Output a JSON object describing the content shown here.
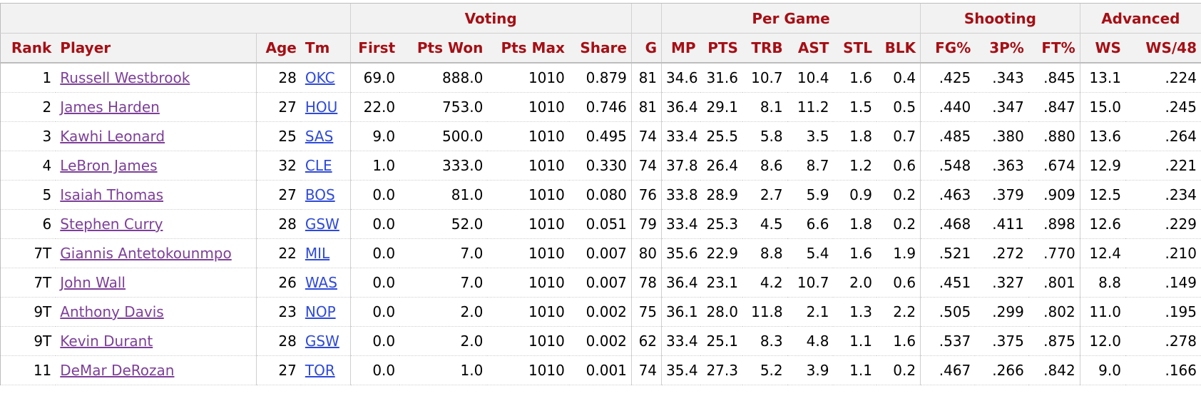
{
  "over_header": {
    "voting": "Voting",
    "per_game": "Per Game",
    "shooting": "Shooting",
    "advanced": "Advanced"
  },
  "columns": {
    "rank": "Rank",
    "player": "Player",
    "age": "Age",
    "tm": "Tm",
    "first": "First",
    "pts_won": "Pts Won",
    "pts_max": "Pts Max",
    "share": "Share",
    "g": "G",
    "mp": "MP",
    "pts": "PTS",
    "trb": "TRB",
    "ast": "AST",
    "stl": "STL",
    "blk": "BLK",
    "fg_pct": "FG%",
    "three_pct": "3P%",
    "ft_pct": "FT%",
    "ws": "WS",
    "ws48": "WS/48"
  },
  "rows": [
    {
      "rank": "1",
      "player": "Russell Westbrook",
      "age": "28",
      "tm": "OKC",
      "first": "69.0",
      "pts_won": "888.0",
      "pts_max": "1010",
      "share": "0.879",
      "g": "81",
      "mp": "34.6",
      "pts": "31.6",
      "trb": "10.7",
      "ast": "10.4",
      "stl": "1.6",
      "blk": "0.4",
      "fg_pct": ".425",
      "three_pct": ".343",
      "ft_pct": ".845",
      "ws": "13.1",
      "ws48": ".224"
    },
    {
      "rank": "2",
      "player": "James Harden",
      "age": "27",
      "tm": "HOU",
      "first": "22.0",
      "pts_won": "753.0",
      "pts_max": "1010",
      "share": "0.746",
      "g": "81",
      "mp": "36.4",
      "pts": "29.1",
      "trb": "8.1",
      "ast": "11.2",
      "stl": "1.5",
      "blk": "0.5",
      "fg_pct": ".440",
      "three_pct": ".347",
      "ft_pct": ".847",
      "ws": "15.0",
      "ws48": ".245"
    },
    {
      "rank": "3",
      "player": "Kawhi Leonard",
      "age": "25",
      "tm": "SAS",
      "first": "9.0",
      "pts_won": "500.0",
      "pts_max": "1010",
      "share": "0.495",
      "g": "74",
      "mp": "33.4",
      "pts": "25.5",
      "trb": "5.8",
      "ast": "3.5",
      "stl": "1.8",
      "blk": "0.7",
      "fg_pct": ".485",
      "three_pct": ".380",
      "ft_pct": ".880",
      "ws": "13.6",
      "ws48": ".264"
    },
    {
      "rank": "4",
      "player": "LeBron James",
      "age": "32",
      "tm": "CLE",
      "first": "1.0",
      "pts_won": "333.0",
      "pts_max": "1010",
      "share": "0.330",
      "g": "74",
      "mp": "37.8",
      "pts": "26.4",
      "trb": "8.6",
      "ast": "8.7",
      "stl": "1.2",
      "blk": "0.6",
      "fg_pct": ".548",
      "three_pct": ".363",
      "ft_pct": ".674",
      "ws": "12.9",
      "ws48": ".221"
    },
    {
      "rank": "5",
      "player": "Isaiah Thomas",
      "age": "27",
      "tm": "BOS",
      "first": "0.0",
      "pts_won": "81.0",
      "pts_max": "1010",
      "share": "0.080",
      "g": "76",
      "mp": "33.8",
      "pts": "28.9",
      "trb": "2.7",
      "ast": "5.9",
      "stl": "0.9",
      "blk": "0.2",
      "fg_pct": ".463",
      "three_pct": ".379",
      "ft_pct": ".909",
      "ws": "12.5",
      "ws48": ".234"
    },
    {
      "rank": "6",
      "player": "Stephen Curry",
      "age": "28",
      "tm": "GSW",
      "first": "0.0",
      "pts_won": "52.0",
      "pts_max": "1010",
      "share": "0.051",
      "g": "79",
      "mp": "33.4",
      "pts": "25.3",
      "trb": "4.5",
      "ast": "6.6",
      "stl": "1.8",
      "blk": "0.2",
      "fg_pct": ".468",
      "three_pct": ".411",
      "ft_pct": ".898",
      "ws": "12.6",
      "ws48": ".229"
    },
    {
      "rank": "7T",
      "player": "Giannis Antetokounmpo",
      "age": "22",
      "tm": "MIL",
      "first": "0.0",
      "pts_won": "7.0",
      "pts_max": "1010",
      "share": "0.007",
      "g": "80",
      "mp": "35.6",
      "pts": "22.9",
      "trb": "8.8",
      "ast": "5.4",
      "stl": "1.6",
      "blk": "1.9",
      "fg_pct": ".521",
      "three_pct": ".272",
      "ft_pct": ".770",
      "ws": "12.4",
      "ws48": ".210"
    },
    {
      "rank": "7T",
      "player": "John Wall",
      "age": "26",
      "tm": "WAS",
      "first": "0.0",
      "pts_won": "7.0",
      "pts_max": "1010",
      "share": "0.007",
      "g": "78",
      "mp": "36.4",
      "pts": "23.1",
      "trb": "4.2",
      "ast": "10.7",
      "stl": "2.0",
      "blk": "0.6",
      "fg_pct": ".451",
      "three_pct": ".327",
      "ft_pct": ".801",
      "ws": "8.8",
      "ws48": ".149"
    },
    {
      "rank": "9T",
      "player": "Anthony Davis",
      "age": "23",
      "tm": "NOP",
      "first": "0.0",
      "pts_won": "2.0",
      "pts_max": "1010",
      "share": "0.002",
      "g": "75",
      "mp": "36.1",
      "pts": "28.0",
      "trb": "11.8",
      "ast": "2.1",
      "stl": "1.3",
      "blk": "2.2",
      "fg_pct": ".505",
      "three_pct": ".299",
      "ft_pct": ".802",
      "ws": "11.0",
      "ws48": ".195"
    },
    {
      "rank": "9T",
      "player": "Kevin Durant",
      "age": "28",
      "tm": "GSW",
      "first": "0.0",
      "pts_won": "2.0",
      "pts_max": "1010",
      "share": "0.002",
      "g": "62",
      "mp": "33.4",
      "pts": "25.1",
      "trb": "8.3",
      "ast": "4.8",
      "stl": "1.1",
      "blk": "1.6",
      "fg_pct": ".537",
      "three_pct": ".375",
      "ft_pct": ".875",
      "ws": "12.0",
      "ws48": ".278"
    },
    {
      "rank": "11",
      "player": "DeMar DeRozan",
      "age": "27",
      "tm": "TOR",
      "first": "0.0",
      "pts_won": "1.0",
      "pts_max": "1010",
      "share": "0.001",
      "g": "74",
      "mp": "35.4",
      "pts": "27.3",
      "trb": "5.2",
      "ast": "3.9",
      "stl": "1.1",
      "blk": "0.2",
      "fg_pct": ".467",
      "three_pct": ".266",
      "ft_pct": ".842",
      "ws": "9.0",
      "ws48": ".166"
    }
  ]
}
